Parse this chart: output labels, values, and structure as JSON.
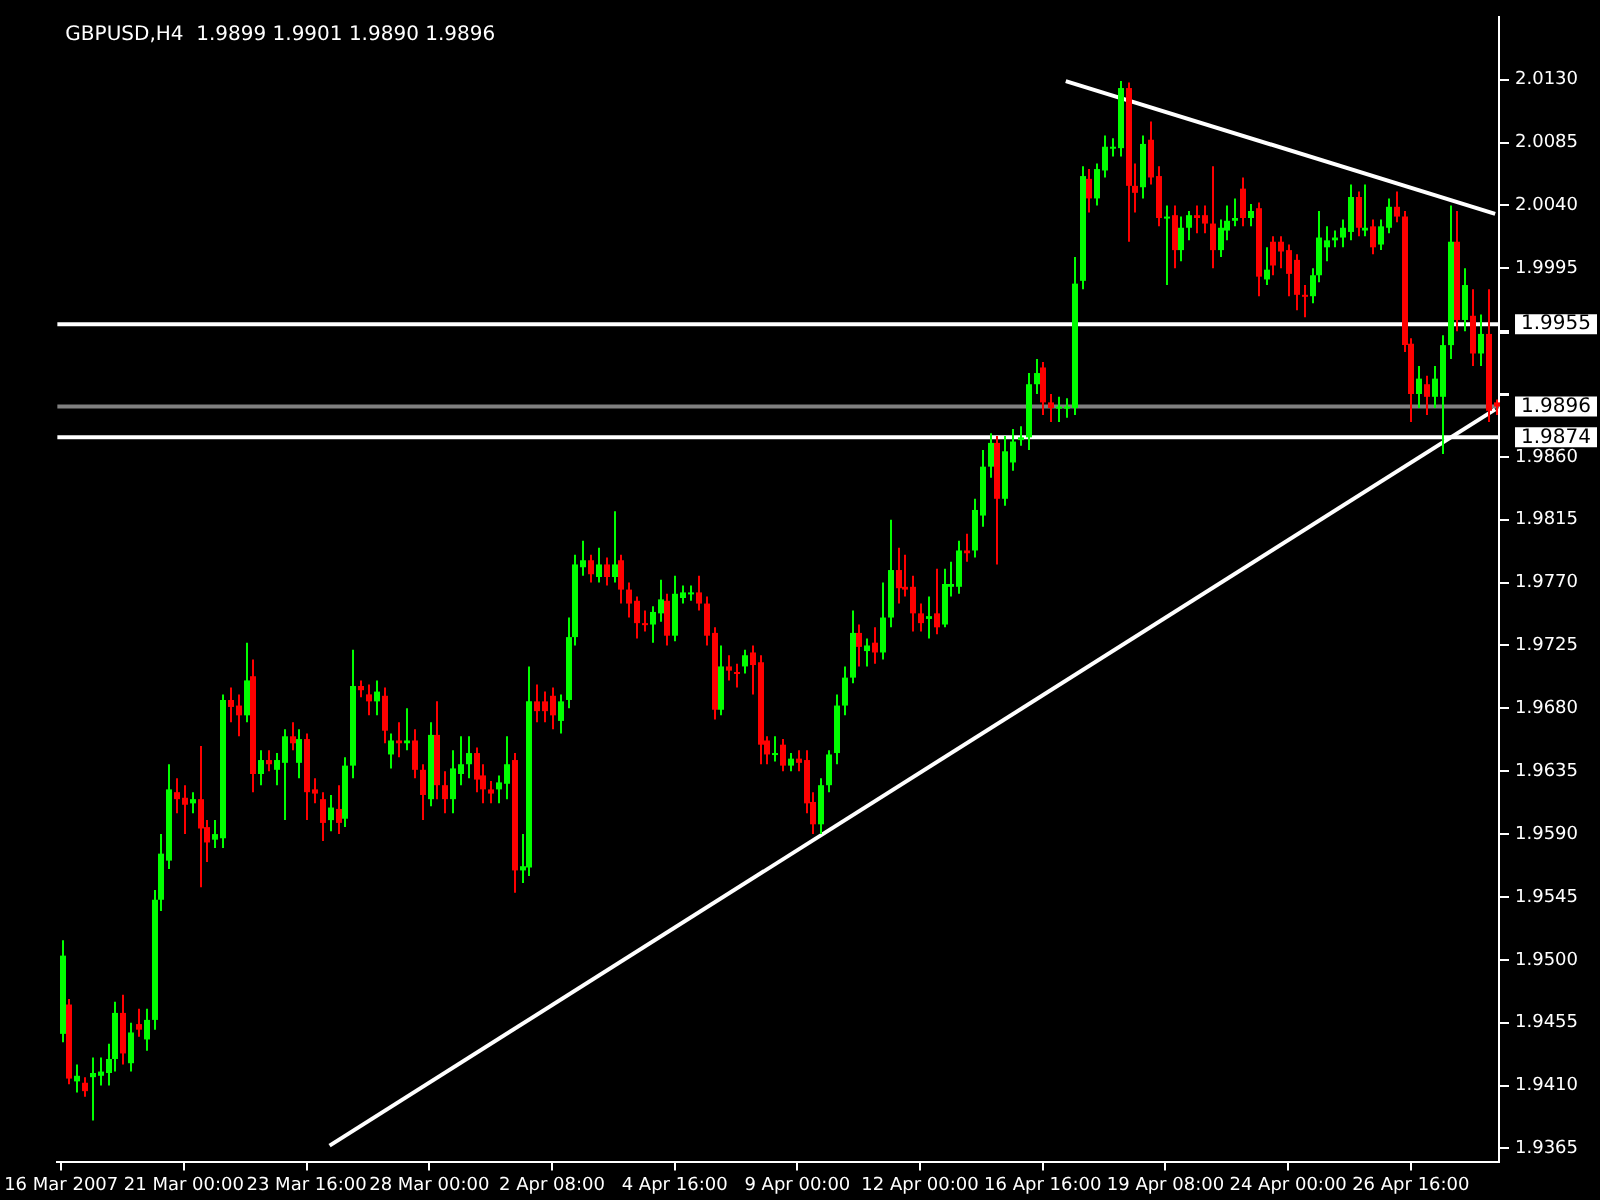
{
  "chart_data": {
    "type": "candlestick",
    "title": "GBPUSD,H4  1.9899 1.9901 1.9890 1.9896",
    "categories": [
      "16 Mar 2007",
      null,
      null,
      null,
      null,
      null,
      null,
      null,
      null,
      null,
      null,
      null,
      null,
      null,
      null,
      null,
      "21 Mar 00:00",
      null,
      null,
      null,
      null,
      null,
      null,
      null,
      null,
      null,
      null,
      null,
      null,
      null,
      null,
      null,
      "23 Mar 16:00",
      null,
      null,
      null,
      null,
      null,
      null,
      null,
      null,
      null,
      null,
      null,
      null,
      null,
      null,
      null,
      "28 Mar 00:00",
      null,
      null,
      null,
      null,
      null,
      null,
      null,
      null,
      null,
      null,
      null,
      null,
      null,
      null,
      null,
      "2 Apr 08:00",
      null,
      null,
      null,
      null,
      null,
      null,
      null,
      null,
      null,
      null,
      null,
      null,
      null,
      null,
      null,
      "4 Apr 16:00",
      null,
      null,
      null,
      null,
      null,
      null,
      null,
      null,
      null,
      null,
      null,
      null,
      null,
      null,
      null,
      "9 Apr 00:00",
      null,
      null,
      null,
      null,
      null,
      null,
      null,
      null,
      null,
      null,
      null,
      null,
      null,
      null,
      null,
      "12 Apr 00:00",
      null,
      null,
      null,
      null,
      null,
      null,
      null,
      null,
      null,
      null,
      null,
      null,
      null,
      null,
      null,
      "16 Apr 16:00",
      null,
      null,
      null,
      null,
      null,
      null,
      null,
      null,
      null,
      null,
      null,
      null,
      null,
      null,
      null,
      "19 Apr 08:00",
      null,
      null,
      null,
      null,
      null,
      null,
      null,
      null,
      null,
      null,
      null,
      null,
      null,
      null,
      null,
      "24 Apr 00:00",
      null,
      null,
      null,
      null,
      null,
      null,
      null,
      null,
      null,
      null,
      null,
      null,
      null,
      null,
      null,
      "26 Apr 16:00",
      null,
      null,
      null,
      null,
      null,
      null,
      null,
      null,
      null,
      null,
      null
    ],
    "ohlc": [
      [
        1.9447,
        1.9514,
        1.9441,
        1.9503
      ],
      [
        1.9468,
        1.9472,
        1.9411,
        1.9415
      ],
      [
        1.9413,
        1.9425,
        1.9405,
        1.9417
      ],
      [
        1.9412,
        1.9416,
        1.9402,
        1.9406
      ],
      [
        1.9416,
        1.943,
        1.9385,
        1.9419
      ],
      [
        1.9417,
        1.943,
        1.941,
        1.942
      ],
      [
        1.9419,
        1.944,
        1.941,
        1.9429
      ],
      [
        1.9429,
        1.947,
        1.942,
        1.9462
      ],
      [
        1.9462,
        1.9475,
        1.9425,
        1.9433
      ],
      [
        1.9426,
        1.9455,
        1.942,
        1.9448
      ],
      [
        1.9454,
        1.9465,
        1.9445,
        1.945
      ],
      [
        1.9443,
        1.9465,
        1.9435,
        1.9457
      ],
      [
        1.9457,
        1.955,
        1.945,
        1.9543
      ],
      [
        1.9543,
        1.959,
        1.9535,
        1.9576
      ],
      [
        1.9571,
        1.964,
        1.9565,
        1.9622
      ],
      [
        1.962,
        1.963,
        1.9605,
        1.9615
      ],
      [
        1.9616,
        1.9625,
        1.959,
        1.9611
      ],
      [
        1.9612,
        1.962,
        1.9605,
        1.9615
      ],
      [
        1.9615,
        1.9653,
        1.9552,
        1.9594
      ],
      [
        1.9595,
        1.96,
        1.957,
        1.9584
      ],
      [
        1.9586,
        1.96,
        1.958,
        1.959
      ],
      [
        1.9587,
        1.969,
        1.958,
        1.9686
      ],
      [
        1.9686,
        1.9695,
        1.967,
        1.9681
      ],
      [
        1.9682,
        1.969,
        1.966,
        1.9675
      ],
      [
        1.9675,
        1.9727,
        1.967,
        1.97
      ],
      [
        1.9703,
        1.9715,
        1.962,
        1.9633
      ],
      [
        1.9633,
        1.965,
        1.9625,
        1.9643
      ],
      [
        1.9643,
        1.965,
        1.9635,
        1.964
      ],
      [
        1.9636,
        1.9648,
        1.9625,
        1.9643
      ],
      [
        1.9641,
        1.9665,
        1.96,
        1.966
      ],
      [
        1.966,
        1.967,
        1.965,
        1.9655
      ],
      [
        1.9641,
        1.9665,
        1.963,
        1.9658
      ],
      [
        1.9658,
        1.9662,
        1.96,
        1.962
      ],
      [
        1.9622,
        1.963,
        1.9612,
        1.9619
      ],
      [
        1.9615,
        1.962,
        1.9585,
        1.9598
      ],
      [
        1.96,
        1.9618,
        1.9592,
        1.9609
      ],
      [
        1.9608,
        1.9625,
        1.959,
        1.9598
      ],
      [
        1.9601,
        1.9645,
        1.9595,
        1.9639
      ],
      [
        1.9639,
        1.9722,
        1.963,
        1.9696
      ],
      [
        1.9696,
        1.97,
        1.9688,
        1.9693
      ],
      [
        1.969,
        1.9697,
        1.9675,
        1.9685
      ],
      [
        1.9685,
        1.97,
        1.9675,
        1.9692
      ],
      [
        1.9689,
        1.9695,
        1.9655,
        1.9664
      ],
      [
        1.9647,
        1.9662,
        1.9637,
        1.9657
      ],
      [
        1.9657,
        1.967,
        1.9645,
        1.9655
      ],
      [
        1.9655,
        1.968,
        1.965,
        1.9657
      ],
      [
        1.9657,
        1.9665,
        1.963,
        1.9636
      ],
      [
        1.9636,
        1.964,
        1.96,
        1.9618
      ],
      [
        1.9615,
        1.967,
        1.961,
        1.9661
      ],
      [
        1.9661,
        1.9685,
        1.9615,
        1.9625
      ],
      [
        1.9625,
        1.9635,
        1.9605,
        1.9615
      ],
      [
        1.9615,
        1.965,
        1.9605,
        1.9637
      ],
      [
        1.9633,
        1.966,
        1.9625,
        1.964
      ],
      [
        1.964,
        1.966,
        1.963,
        1.9648
      ],
      [
        1.9648,
        1.9652,
        1.962,
        1.9629
      ],
      [
        1.9632,
        1.964,
        1.9612,
        1.9622
      ],
      [
        1.9622,
        1.9628,
        1.9612,
        1.9619
      ],
      [
        1.9622,
        1.9632,
        1.9612,
        1.9627
      ],
      [
        1.9626,
        1.966,
        1.9615,
        1.964
      ],
      [
        1.9643,
        1.9648,
        1.9548,
        1.9564
      ],
      [
        1.9564,
        1.959,
        1.9555,
        1.9567
      ],
      [
        1.9566,
        1.971,
        1.956,
        1.9685
      ],
      [
        1.9685,
        1.9697,
        1.967,
        1.9678
      ],
      [
        1.9685,
        1.9692,
        1.967,
        1.9678
      ],
      [
        1.9689,
        1.9695,
        1.9665,
        1.9675
      ],
      [
        1.9671,
        1.969,
        1.9662,
        1.9685
      ],
      [
        1.9686,
        1.9745,
        1.968,
        1.9731
      ],
      [
        1.9731,
        1.979,
        1.9725,
        1.9783
      ],
      [
        1.9781,
        1.98,
        1.9775,
        1.9786
      ],
      [
        1.9786,
        1.979,
        1.977,
        1.9776
      ],
      [
        1.9774,
        1.9795,
        1.977,
        1.9783
      ],
      [
        1.9783,
        1.9788,
        1.9768,
        1.9774
      ],
      [
        1.9774,
        1.9821,
        1.977,
        1.9783
      ],
      [
        1.9786,
        1.979,
        1.9755,
        1.9765
      ],
      [
        1.9765,
        1.977,
        1.9745,
        1.9755
      ],
      [
        1.9757,
        1.976,
        1.973,
        1.9741
      ],
      [
        1.9741,
        1.975,
        1.9735,
        1.974
      ],
      [
        1.974,
        1.9753,
        1.9727,
        1.9749
      ],
      [
        1.9748,
        1.9772,
        1.9742,
        1.9758
      ],
      [
        1.9757,
        1.9762,
        1.9725,
        1.9732
      ],
      [
        1.9732,
        1.9775,
        1.9728,
        1.9762
      ],
      [
        1.9759,
        1.9768,
        1.9755,
        1.9763
      ],
      [
        1.9762,
        1.9768,
        1.9757,
        1.9763
      ],
      [
        1.9763,
        1.9775,
        1.975,
        1.9755
      ],
      [
        1.9755,
        1.976,
        1.9725,
        1.9732
      ],
      [
        1.9734,
        1.9738,
        1.9672,
        1.9679
      ],
      [
        1.9679,
        1.9725,
        1.9675,
        1.971
      ],
      [
        1.971,
        1.9718,
        1.97,
        1.9707
      ],
      [
        1.9706,
        1.9712,
        1.9695,
        1.9705
      ],
      [
        1.971,
        1.9722,
        1.9705,
        1.9718
      ],
      [
        1.972,
        1.9725,
        1.969,
        1.9711
      ],
      [
        1.9713,
        1.9718,
        1.964,
        1.9654
      ],
      [
        1.9657,
        1.966,
        1.964,
        1.9647
      ],
      [
        1.9647,
        1.966,
        1.9642,
        1.9648
      ],
      [
        1.9654,
        1.9658,
        1.9635,
        1.9639
      ],
      [
        1.9639,
        1.9648,
        1.9635,
        1.9644
      ],
      [
        1.9644,
        1.965,
        1.9635,
        1.9641
      ],
      [
        1.9643,
        1.965,
        1.9605,
        1.9612
      ],
      [
        1.9613,
        1.962,
        1.959,
        1.9597
      ],
      [
        1.9597,
        1.963,
        1.959,
        1.9625
      ],
      [
        1.9625,
        1.965,
        1.962,
        1.9647
      ],
      [
        1.9648,
        1.969,
        1.964,
        1.9682
      ],
      [
        1.9682,
        1.971,
        1.9675,
        1.9702
      ],
      [
        1.9702,
        1.975,
        1.9698,
        1.9734
      ],
      [
        1.9734,
        1.974,
        1.971,
        1.9724
      ],
      [
        1.9721,
        1.973,
        1.971,
        1.9725
      ],
      [
        1.9727,
        1.9738,
        1.9712,
        1.972
      ],
      [
        1.972,
        1.977,
        1.9715,
        1.9745
      ],
      [
        1.9745,
        1.9815,
        1.9738,
        1.9779
      ],
      [
        1.9779,
        1.9795,
        1.9755,
        1.9766
      ],
      [
        1.9767,
        1.979,
        1.976,
        1.9765
      ],
      [
        1.9767,
        1.9775,
        1.9735,
        1.9748
      ],
      [
        1.9748,
        1.9755,
        1.9735,
        1.9741
      ],
      [
        1.9744,
        1.976,
        1.973,
        1.9746
      ],
      [
        1.9748,
        1.978,
        1.9733,
        1.9738
      ],
      [
        1.974,
        1.978,
        1.9738,
        1.9769
      ],
      [
        1.9767,
        1.9785,
        1.976,
        1.9769
      ],
      [
        1.9767,
        1.98,
        1.9762,
        1.9793
      ],
      [
        1.9793,
        1.9805,
        1.9785,
        1.9791
      ],
      [
        1.9793,
        1.983,
        1.9788,
        1.9822
      ],
      [
        1.9818,
        1.9865,
        1.981,
        1.9853
      ],
      [
        1.9853,
        1.9877,
        1.9845,
        1.987
      ],
      [
        1.987,
        1.9875,
        1.9783,
        1.983
      ],
      [
        1.983,
        1.9875,
        1.9825,
        1.9864
      ],
      [
        1.9856,
        1.988,
        1.985,
        1.9871
      ],
      [
        1.9872,
        1.9882,
        1.9868,
        1.9874
      ],
      [
        1.9874,
        1.992,
        1.9865,
        1.9912
      ],
      [
        1.9912,
        1.993,
        1.9905,
        1.992
      ],
      [
        1.9924,
        1.9928,
        1.989,
        1.9899
      ],
      [
        1.9899,
        1.9905,
        1.9885,
        1.9895
      ],
      [
        1.9895,
        1.9903,
        1.9885,
        1.9896
      ],
      [
        1.9895,
        1.9902,
        1.9888,
        1.9896
      ],
      [
        1.9895,
        2.0003,
        1.989,
        1.9984
      ],
      [
        1.9986,
        2.0068,
        1.998,
        2.0061
      ],
      [
        2.0059,
        2.0066,
        2.0035,
        2.0045
      ],
      [
        2.0045,
        2.007,
        2.004,
        2.0066
      ],
      [
        2.0065,
        2.009,
        2.006,
        2.0082
      ],
      [
        2.0081,
        2.0088,
        2.0075,
        2.0082
      ],
      [
        2.0081,
        2.0129,
        2.0075,
        2.0124
      ],
      [
        2.0124,
        2.0128,
        2.0014,
        2.0054
      ],
      [
        2.0054,
        2.007,
        2.0035,
        2.0049
      ],
      [
        2.0053,
        2.009,
        2.0045,
        2.0084
      ],
      [
        2.0087,
        2.01,
        2.0055,
        2.006
      ],
      [
        2.0061,
        2.0068,
        2.0025,
        2.0031
      ],
      [
        2.0031,
        2.004,
        1.9983,
        2.0032
      ],
      [
        2.0033,
        2.004,
        1.9995,
        2.0008
      ],
      [
        2.0008,
        2.0032,
        2.0,
        2.0024
      ],
      [
        2.0024,
        2.0036,
        2.0015,
        2.0033
      ],
      [
        2.0033,
        2.004,
        2.002,
        2.0031
      ],
      [
        2.0033,
        2.004,
        2.002,
        2.0027
      ],
      [
        2.0027,
        2.0068,
        1.9995,
        2.0008
      ],
      [
        2.0008,
        2.003,
        2.0003,
        2.0024
      ],
      [
        2.0022,
        2.004,
        2.0015,
        2.0029
      ],
      [
        2.0029,
        2.0045,
        2.0025,
        2.0031
      ],
      [
        2.0052,
        2.006,
        2.0025,
        2.0031
      ],
      [
        2.0031,
        2.0041,
        2.0025,
        2.0036
      ],
      [
        2.0038,
        2.0042,
        1.9975,
        1.9989
      ],
      [
        1.9987,
        2.001,
        1.9983,
        1.9994
      ],
      [
        2.0014,
        2.0018,
        1.999,
        1.9997
      ],
      [
        2.0014,
        2.0018,
        1.9995,
        2.0007
      ],
      [
        2.0008,
        2.0012,
        1.9975,
        1.9991
      ],
      [
        2.0001,
        2.0005,
        1.9965,
        1.9976
      ],
      [
        1.9976,
        1.9983,
        1.996,
        1.9975
      ],
      [
        1.9975,
        1.9995,
        1.997,
        1.999
      ],
      [
        1.999,
        2.0036,
        1.9985,
        2.0017
      ],
      [
        2.001,
        2.0025,
        2.0,
        2.0015
      ],
      [
        2.0015,
        2.0022,
        2.001,
        2.0017
      ],
      [
        2.0017,
        2.003,
        2.001,
        2.0024
      ],
      [
        2.0021,
        2.0055,
        2.0015,
        2.0046
      ],
      [
        2.0046,
        2.005,
        2.0018,
        2.0024
      ],
      [
        2.0022,
        2.0055,
        2.0018,
        2.0024
      ],
      [
        2.0025,
        2.003,
        2.0005,
        2.001
      ],
      [
        2.0012,
        2.003,
        2.0008,
        2.0025
      ],
      [
        2.0024,
        2.0045,
        2.002,
        2.0039
      ],
      [
        2.0039,
        2.005,
        2.0028,
        2.0032
      ],
      [
        2.0032,
        2.0036,
        1.9935,
        1.994
      ],
      [
        1.9941,
        1.9945,
        1.9885,
        1.9905
      ],
      [
        1.9905,
        1.9925,
        1.9895,
        1.9916
      ],
      [
        1.9912,
        1.9918,
        1.989,
        1.9903
      ],
      [
        1.9903,
        1.9925,
        1.9895,
        1.9916
      ],
      [
        1.9903,
        1.9947,
        1.9862,
        1.994
      ],
      [
        1.994,
        2.004,
        1.993,
        2.0014
      ],
      [
        2.0014,
        2.0036,
        1.995,
        1.9958
      ],
      [
        1.9958,
        1.9995,
        1.995,
        1.9983
      ],
      [
        1.9961,
        1.998,
        1.9925,
        1.9934
      ],
      [
        1.9934,
        1.9962,
        1.9925,
        1.9948
      ],
      [
        1.9948,
        1.998,
        1.9885,
        1.9893
      ],
      [
        1.9899,
        1.9901,
        1.989,
        1.9896
      ]
    ],
    "colors": [
      "#00ff00",
      "#ff0000",
      "#00ff00",
      "#ff0000",
      "#00ff00",
      "#00ff00",
      "#00ff00",
      "#00ff00",
      "#ff0000",
      "#00ff00",
      "#ff0000",
      "#00ff00",
      "#00ff00",
      "#00ff00",
      "#00ff00",
      "#ff0000",
      "#ff0000",
      "#00ff00",
      "#ff0000",
      "#ff0000",
      "#00ff00",
      "#00ff00",
      "#ff0000",
      "#ff0000",
      "#00ff00",
      "#ff0000",
      "#00ff00",
      "#ff0000",
      "#00ff00",
      "#00ff00",
      "#ff0000",
      "#00ff00",
      "#ff0000",
      "#ff0000",
      "#ff0000",
      "#00ff00",
      "#ff0000",
      "#00ff00",
      "#00ff00",
      "#ff0000",
      "#ff0000",
      "#00ff00",
      "#ff0000",
      "#00ff00",
      "#ff0000",
      "#00ff00",
      "#ff0000",
      "#ff0000",
      "#00ff00",
      "#ff0000",
      "#ff0000",
      "#00ff00",
      "#00ff00",
      "#00ff00",
      "#ff0000",
      "#ff0000",
      "#ff0000",
      "#00ff00",
      "#00ff00",
      "#ff0000",
      "#00ff00",
      "#00ff00",
      "#ff0000",
      "#ff0000",
      "#ff0000",
      "#00ff00",
      "#00ff00",
      "#00ff00",
      "#00ff00",
      "#ff0000",
      "#00ff00",
      "#ff0000",
      "#00ff00",
      "#ff0000",
      "#ff0000",
      "#ff0000",
      "#ff0000",
      "#00ff00",
      "#00ff00",
      "#ff0000",
      "#00ff00",
      "#00ff00",
      "#00ff00",
      "#ff0000",
      "#ff0000",
      "#ff0000",
      "#00ff00",
      "#ff0000",
      "#ff0000",
      "#00ff00",
      "#ff0000",
      "#ff0000",
      "#ff0000",
      "#00ff00",
      "#ff0000",
      "#00ff00",
      "#ff0000",
      "#ff0000",
      "#ff0000",
      "#00ff00",
      "#00ff00",
      "#00ff00",
      "#00ff00",
      "#00ff00",
      "#ff0000",
      "#00ff00",
      "#ff0000",
      "#00ff00",
      "#00ff00",
      "#ff0000",
      "#ff0000",
      "#ff0000",
      "#ff0000",
      "#00ff00",
      "#ff0000",
      "#00ff00",
      "#00ff00",
      "#00ff00",
      "#ff0000",
      "#00ff00",
      "#00ff00",
      "#00ff00",
      "#ff0000",
      "#00ff00",
      "#00ff00",
      "#00ff00",
      "#00ff00",
      "#00ff00",
      "#ff0000",
      "#ff0000",
      "#00ff00",
      "#00ff00",
      "#00ff00",
      "#00ff00",
      "#ff0000",
      "#00ff00",
      "#00ff00",
      "#00ff00",
      "#00ff00",
      "#ff0000",
      "#ff0000",
      "#00ff00",
      "#ff0000",
      "#ff0000",
      "#00ff00",
      "#ff0000",
      "#00ff00",
      "#00ff00",
      "#ff0000",
      "#ff0000",
      "#ff0000",
      "#00ff00",
      "#00ff00",
      "#00ff00",
      "#ff0000",
      "#00ff00",
      "#ff0000",
      "#00ff00",
      "#ff0000",
      "#ff0000",
      "#ff0000",
      "#ff0000",
      "#ff0000",
      "#00ff00",
      "#00ff00",
      "#00ff00",
      "#00ff00",
      "#00ff00",
      "#00ff00",
      "#ff0000",
      "#00ff00",
      "#ff0000",
      "#00ff00",
      "#00ff00",
      "#ff0000",
      "#ff0000",
      "#ff0000",
      "#00ff00",
      "#ff0000",
      "#00ff00",
      "#00ff00",
      "#00ff00",
      "#ff0000",
      "#00ff00",
      "#ff0000",
      "#00ff00",
      "#ff0000",
      "#ff0000"
    ],
    "series": [
      {
        "type": "line",
        "color": "#ffffff",
        "values": [
          null,
          null,
          null,
          null,
          null,
          null,
          null,
          null,
          null,
          null,
          null,
          null,
          null,
          null,
          null,
          null,
          null,
          null,
          null,
          null,
          null,
          null,
          null,
          null,
          null,
          null,
          null,
          null,
          null,
          null,
          null,
          null,
          null,
          null,
          null,
          1.9367,
          null,
          null,
          null,
          null,
          null,
          null,
          null,
          null,
          null,
          null,
          null,
          null,
          null,
          null,
          null,
          null,
          null,
          null,
          null,
          null,
          null,
          null,
          null,
          null,
          null,
          null,
          null,
          null,
          null,
          null,
          null,
          null,
          null,
          null,
          null,
          null,
          null,
          null,
          null,
          null,
          null,
          null,
          null,
          null,
          null,
          null,
          null,
          null,
          null,
          null,
          null,
          null,
          null,
          null,
          null,
          null,
          null,
          null,
          null,
          null,
          null,
          null,
          null,
          null,
          null,
          null,
          null,
          null,
          null,
          null,
          null,
          null,
          null,
          null,
          null,
          null,
          null,
          null,
          null,
          null,
          null,
          null,
          null,
          null,
          null,
          null,
          null,
          null,
          null,
          null,
          null,
          null,
          null,
          null,
          null,
          null,
          null,
          null,
          null,
          null,
          null,
          null,
          null,
          null,
          null,
          null,
          null,
          null,
          null,
          null,
          null,
          null,
          null,
          null,
          null,
          null,
          null,
          null,
          null,
          null,
          null,
          null,
          null,
          null,
          null,
          null,
          null,
          null,
          null,
          null,
          null,
          null,
          null,
          null,
          null,
          null,
          null,
          null,
          null,
          null,
          null,
          null,
          null,
          null,
          null,
          null,
          null,
          null,
          null,
          null,
          null,
          1.9894
        ]
      },
      {
        "type": "line",
        "color": "#ffffff",
        "values": [
          null,
          null,
          null,
          null,
          null,
          null,
          null,
          null,
          null,
          null,
          null,
          null,
          null,
          null,
          null,
          null,
          null,
          null,
          null,
          null,
          null,
          null,
          null,
          null,
          null,
          null,
          null,
          null,
          null,
          null,
          null,
          null,
          null,
          null,
          null,
          null,
          null,
          null,
          null,
          null,
          null,
          null,
          null,
          null,
          null,
          null,
          null,
          null,
          null,
          null,
          null,
          null,
          null,
          null,
          null,
          null,
          null,
          null,
          null,
          null,
          null,
          null,
          null,
          null,
          null,
          null,
          null,
          null,
          null,
          null,
          null,
          null,
          null,
          null,
          null,
          null,
          null,
          null,
          null,
          null,
          null,
          null,
          null,
          null,
          null,
          null,
          null,
          null,
          null,
          null,
          null,
          null,
          null,
          null,
          null,
          null,
          null,
          null,
          null,
          null,
          null,
          null,
          null,
          null,
          null,
          null,
          null,
          null,
          null,
          null,
          null,
          null,
          null,
          null,
          null,
          null,
          null,
          null,
          null,
          null,
          null,
          null,
          null,
          null,
          null,
          null,
          null,
          null,
          null,
          null,
          null,
          2.0129,
          null,
          null,
          null,
          null,
          null,
          null,
          null,
          null,
          null,
          null,
          null,
          null,
          null,
          null,
          null,
          null,
          null,
          null,
          null,
          null,
          null,
          null,
          null,
          null,
          null,
          null,
          null,
          null,
          null,
          null,
          null,
          null,
          null,
          null,
          null,
          null,
          null,
          null,
          null,
          null,
          null,
          null,
          null,
          null,
          null,
          null,
          null,
          null,
          null,
          null,
          null,
          null,
          null,
          null,
          null,
          2.0034
        ]
      }
    ],
    "ylim": [
      1.9355,
      2.0175
    ],
    "yticks": [
      1.9365,
      {
        "value": 1.941,
        "label": "1.9410"
      },
      1.9455,
      {
        "value": 1.95,
        "label": "1.9500"
      },
      1.9545,
      {
        "value": 1.959,
        "label": "1.9590"
      },
      1.9635,
      {
        "value": 1.968,
        "label": "1.9680"
      },
      1.9725,
      {
        "value": 1.977,
        "label": "1.9770"
      },
      1.9815,
      {
        "value": 1.986,
        "label": "1.9860"
      },
      {
        "value": 1.9905,
        "label": null
      },
      {
        "value": 1.995,
        "label": null
      },
      1.9995,
      {
        "value": 2.004,
        "label": "2.0040"
      },
      2.0085,
      {
        "value": 2.013,
        "label": "2.0130"
      }
    ],
    "ref_lines": [
      {
        "axis": "y",
        "value": 1.9955,
        "label": "1.9955",
        "color": "#ffffff"
      },
      {
        "axis": "y",
        "value": 1.9874,
        "label": "1.9874",
        "color": "#ffffff"
      },
      {
        "axis": "y",
        "value": 1.9896,
        "label": "1.9896",
        "color": "#808080"
      }
    ],
    "marker": "none",
    "grid": false
  }
}
